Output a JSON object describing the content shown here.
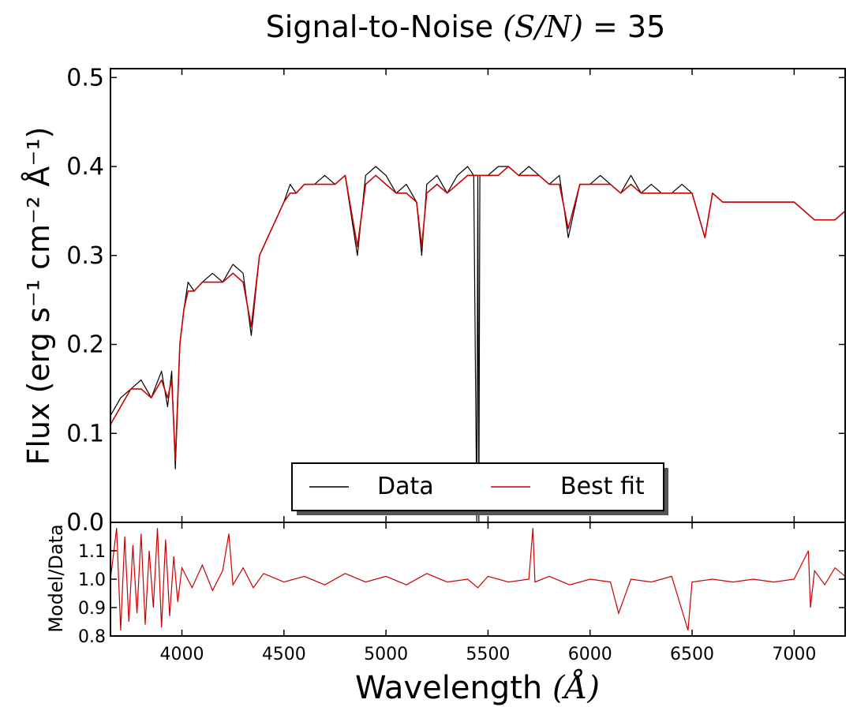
{
  "chart_data": {
    "type": "line",
    "title": {
      "prefix": "Signal-to-Noise ",
      "math": "(S/N)",
      "suffix": " = 35"
    },
    "xlabel": {
      "text": "Wavelength ",
      "unit": "(Å)"
    },
    "xlim": [
      3650,
      7250
    ],
    "x_ticks": [
      {
        "v": 4000,
        "label": "4000"
      },
      {
        "v": 4500,
        "label": "4500"
      },
      {
        "v": 5000,
        "label": "5000"
      },
      {
        "v": 5500,
        "label": "5500"
      },
      {
        "v": 6000,
        "label": "6000"
      },
      {
        "v": 6500,
        "label": "6500"
      },
      {
        "v": 7000,
        "label": "7000"
      }
    ],
    "top_panel": {
      "ylabel": "Flux (erg s⁻¹ cm⁻² Å⁻¹)",
      "ylim": [
        0.0,
        0.51
      ],
      "y_ticks": [
        {
          "v": 0.0,
          "label": "0.0"
        },
        {
          "v": 0.1,
          "label": "0.1"
        },
        {
          "v": 0.2,
          "label": "0.2"
        },
        {
          "v": 0.3,
          "label": "0.3"
        },
        {
          "v": 0.4,
          "label": "0.4"
        },
        {
          "v": 0.5,
          "label": "0.5"
        }
      ],
      "legend": {
        "position": "lower-center",
        "entries": [
          {
            "label": "Data",
            "color": "#000000"
          },
          {
            "label": "Best fit",
            "color": "#cc0000"
          }
        ]
      },
      "series": [
        {
          "name": "Data",
          "color": "#000000",
          "x": [
            3650,
            3700,
            3750,
            3800,
            3850,
            3900,
            3930,
            3950,
            3968,
            3990,
            4010,
            4030,
            4060,
            4100,
            4150,
            4200,
            4250,
            4300,
            4340,
            4380,
            4420,
            4460,
            4500,
            4530,
            4560,
            4600,
            4650,
            4700,
            4750,
            4800,
            4860,
            4900,
            4950,
            5000,
            5050,
            5100,
            5150,
            5175,
            5200,
            5250,
            5300,
            5350,
            5400,
            5430,
            5445,
            5450,
            5455,
            5460,
            5500,
            5550,
            5600,
            5650,
            5700,
            5750,
            5800,
            5850,
            5893,
            5950,
            6000,
            6050,
            6100,
            6150,
            6200,
            6250,
            6300,
            6350,
            6400,
            6450,
            6500,
            6563,
            6600,
            6650,
            6700,
            6750,
            6800,
            6850,
            6900,
            6950,
            7000,
            7050,
            7100,
            7150,
            7200,
            7250
          ],
          "y": [
            0.12,
            0.14,
            0.15,
            0.16,
            0.14,
            0.17,
            0.13,
            0.17,
            0.06,
            0.2,
            0.24,
            0.27,
            0.26,
            0.27,
            0.28,
            0.27,
            0.29,
            0.28,
            0.21,
            0.3,
            0.32,
            0.34,
            0.36,
            0.38,
            0.37,
            0.38,
            0.38,
            0.39,
            0.38,
            0.39,
            0.3,
            0.39,
            0.4,
            0.39,
            0.37,
            0.38,
            0.36,
            0.3,
            0.38,
            0.39,
            0.37,
            0.39,
            0.4,
            0.39,
            0.0,
            0.39,
            0.0,
            0.39,
            0.39,
            0.4,
            0.4,
            0.39,
            0.4,
            0.39,
            0.38,
            0.39,
            0.32,
            0.38,
            0.38,
            0.39,
            0.38,
            0.37,
            0.39,
            0.37,
            0.38,
            0.37,
            0.37,
            0.38,
            0.37,
            0.32,
            0.37,
            0.36,
            0.36,
            0.36,
            0.36,
            0.36,
            0.36,
            0.36,
            0.36,
            0.35,
            0.34,
            0.34,
            0.34,
            0.35
          ]
        },
        {
          "name": "Best fit",
          "color": "#cc0000",
          "x": [
            3650,
            3700,
            3750,
            3800,
            3850,
            3900,
            3930,
            3950,
            3968,
            3990,
            4010,
            4030,
            4060,
            4100,
            4150,
            4200,
            4250,
            4300,
            4340,
            4380,
            4420,
            4460,
            4500,
            4530,
            4560,
            4600,
            4650,
            4700,
            4750,
            4800,
            4860,
            4900,
            4950,
            5000,
            5050,
            5100,
            5150,
            5175,
            5200,
            5250,
            5300,
            5350,
            5400,
            5500,
            5550,
            5600,
            5650,
            5700,
            5750,
            5800,
            5850,
            5893,
            5950,
            6000,
            6050,
            6100,
            6150,
            6200,
            6250,
            6300,
            6350,
            6400,
            6450,
            6500,
            6563,
            6600,
            6650,
            6700,
            6750,
            6800,
            6850,
            6900,
            6950,
            7000,
            7050,
            7100,
            7150,
            7200,
            7250
          ],
          "y": [
            0.11,
            0.13,
            0.15,
            0.15,
            0.14,
            0.16,
            0.14,
            0.16,
            0.07,
            0.2,
            0.24,
            0.26,
            0.26,
            0.27,
            0.27,
            0.27,
            0.28,
            0.27,
            0.22,
            0.3,
            0.32,
            0.34,
            0.36,
            0.37,
            0.37,
            0.38,
            0.38,
            0.38,
            0.38,
            0.39,
            0.31,
            0.38,
            0.39,
            0.38,
            0.37,
            0.37,
            0.36,
            0.31,
            0.37,
            0.38,
            0.37,
            0.38,
            0.39,
            0.39,
            0.39,
            0.4,
            0.39,
            0.39,
            0.39,
            0.38,
            0.38,
            0.33,
            0.38,
            0.38,
            0.38,
            0.38,
            0.37,
            0.38,
            0.37,
            0.37,
            0.37,
            0.37,
            0.37,
            0.37,
            0.32,
            0.37,
            0.36,
            0.36,
            0.36,
            0.36,
            0.36,
            0.36,
            0.36,
            0.36,
            0.35,
            0.34,
            0.34,
            0.34,
            0.35
          ]
        }
      ]
    },
    "bottom_panel": {
      "ylabel": "Model/Data",
      "ylim": [
        0.8,
        1.2
      ],
      "y_ticks": [
        {
          "v": 0.8,
          "label": "0.8"
        },
        {
          "v": 0.9,
          "label": "0.9"
        },
        {
          "v": 1.0,
          "label": "1.0"
        },
        {
          "v": 1.1,
          "label": "1.1"
        }
      ],
      "series": [
        {
          "name": "Model/Data",
          "color": "#cc0000",
          "x": [
            3650,
            3680,
            3700,
            3720,
            3740,
            3760,
            3780,
            3800,
            3820,
            3840,
            3860,
            3880,
            3900,
            3920,
            3940,
            3960,
            3980,
            4000,
            4050,
            4100,
            4150,
            4200,
            4230,
            4250,
            4300,
            4350,
            4400,
            4500,
            4600,
            4700,
            4800,
            4900,
            5000,
            5100,
            5200,
            5300,
            5400,
            5450,
            5500,
            5600,
            5700,
            5720,
            5730,
            5800,
            5900,
            6000,
            6100,
            6140,
            6200,
            6300,
            6400,
            6480,
            6500,
            6600,
            6700,
            6800,
            6900,
            7000,
            7070,
            7080,
            7100,
            7150,
            7200,
            7250
          ],
          "y": [
            1.0,
            1.18,
            0.82,
            1.15,
            0.85,
            1.12,
            0.88,
            1.16,
            0.84,
            1.1,
            0.9,
            1.18,
            0.83,
            1.14,
            0.87,
            1.08,
            0.92,
            1.04,
            0.97,
            1.05,
            0.96,
            1.03,
            1.16,
            0.98,
            1.04,
            0.97,
            1.02,
            0.99,
            1.01,
            0.98,
            1.02,
            0.99,
            1.01,
            0.98,
            1.02,
            0.99,
            1.0,
            0.97,
            1.01,
            0.99,
            1.0,
            1.18,
            0.99,
            1.01,
            0.98,
            1.0,
            0.99,
            0.88,
            1.0,
            0.99,
            1.01,
            0.82,
            0.99,
            1.0,
            0.99,
            1.0,
            0.99,
            1.0,
            1.1,
            0.9,
            1.03,
            0.98,
            1.04,
            1.01
          ]
        }
      ]
    }
  }
}
